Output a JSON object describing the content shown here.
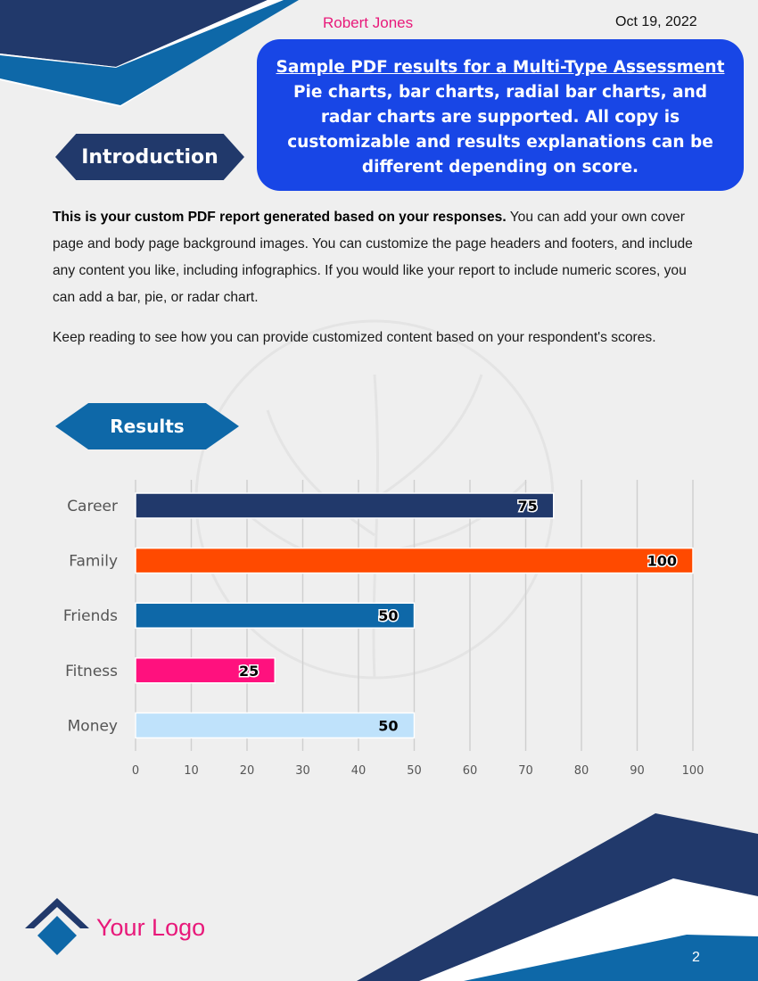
{
  "header": {
    "author": "Robert Jones",
    "date": "Oct 19, 2022"
  },
  "callout": {
    "heading": "Sample PDF results for a Multi-Type Assessment",
    "body": "Pie charts, bar charts, radial bar charts, and radar charts are supported. All copy is customizable and results explanations can be different depending on score."
  },
  "sections": {
    "introduction": "Introduction",
    "results": "Results"
  },
  "intro": {
    "lead": "This is your custom PDF report generated based on your responses.",
    "paragraph1": " You can add your own cover page and body page background images. You can customize the page headers and footers, and include any content you like, including infographics. If you would like your report to include numeric scores, you can add a bar, pie, or radar chart.",
    "paragraph2": "Keep reading to see how you can provide customized content based on your respondent's scores."
  },
  "chart_data": {
    "type": "bar",
    "orientation": "horizontal",
    "categories": [
      "Career",
      "Family",
      "Friends",
      "Fitness",
      "Money"
    ],
    "values": [
      75,
      100,
      50,
      25,
      50
    ],
    "colors": [
      "#21396b",
      "#ff4a00",
      "#0e68a8",
      "#ff117e",
      "#bfe2fb"
    ],
    "xlim": [
      0,
      100
    ],
    "xticks": [
      0,
      10,
      20,
      30,
      40,
      50,
      60,
      70,
      80,
      90,
      100
    ],
    "grid": true,
    "title": "",
    "xlabel": "",
    "ylabel": ""
  },
  "footer": {
    "logo_text": "Your Logo",
    "page_number": "2"
  },
  "colors": {
    "navy": "#21396b",
    "blue": "#0e68a8",
    "callout_blue": "#1846e6",
    "pink": "#e8197a",
    "orange": "#ff4a00"
  }
}
